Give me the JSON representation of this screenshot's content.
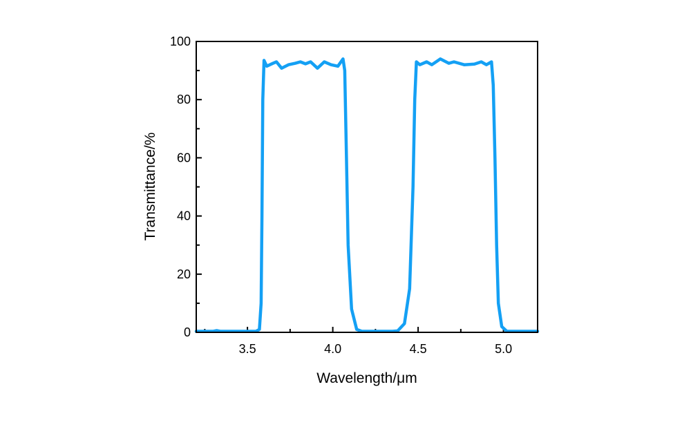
{
  "chart_data": {
    "type": "line",
    "title": "",
    "xlabel": "Wavelength/μm",
    "ylabel": "Transmittance/%",
    "xlim": [
      3.2,
      5.2
    ],
    "ylim": [
      0,
      100
    ],
    "xticks": [
      3.5,
      4.0,
      4.5,
      5.0
    ],
    "xtick_labels": [
      "3.5",
      "4.0",
      "4.5",
      "5.0"
    ],
    "xminor_step": 0.25,
    "yticks": [
      0,
      20,
      40,
      60,
      80,
      100
    ],
    "ytick_labels": [
      "0",
      "20",
      "40",
      "60",
      "80",
      "100"
    ],
    "yminor_step": 10,
    "grid": false,
    "legend": "none",
    "line_color": "#14a0f4",
    "series": [
      {
        "points": [
          [
            3.2,
            0
          ],
          [
            3.3,
            0
          ],
          [
            3.32,
            0.6
          ],
          [
            3.34,
            0
          ],
          [
            3.5,
            0
          ],
          [
            3.55,
            0
          ],
          [
            3.57,
            1
          ],
          [
            3.58,
            10
          ],
          [
            3.585,
            40
          ],
          [
            3.59,
            80
          ],
          [
            3.597,
            93.5
          ],
          [
            3.613,
            91.5
          ],
          [
            3.65,
            92.5
          ],
          [
            3.67,
            93
          ],
          [
            3.7,
            90.8
          ],
          [
            3.74,
            92
          ],
          [
            3.78,
            92.5
          ],
          [
            3.81,
            93
          ],
          [
            3.84,
            92.3
          ],
          [
            3.87,
            93
          ],
          [
            3.91,
            90.8
          ],
          [
            3.95,
            93
          ],
          [
            3.99,
            92
          ],
          [
            4.03,
            91.5
          ],
          [
            4.06,
            94
          ],
          [
            4.07,
            90
          ],
          [
            4.08,
            60
          ],
          [
            4.09,
            30
          ],
          [
            4.11,
            8
          ],
          [
            4.14,
            1
          ],
          [
            4.17,
            0
          ],
          [
            4.35,
            0
          ],
          [
            4.38,
            0.5
          ],
          [
            4.42,
            3
          ],
          [
            4.45,
            15
          ],
          [
            4.47,
            50
          ],
          [
            4.48,
            80
          ],
          [
            4.49,
            93
          ],
          [
            4.51,
            92
          ],
          [
            4.55,
            93
          ],
          [
            4.58,
            92
          ],
          [
            4.63,
            94
          ],
          [
            4.68,
            92.5
          ],
          [
            4.71,
            93
          ],
          [
            4.77,
            92
          ],
          [
            4.83,
            92.2
          ],
          [
            4.87,
            93
          ],
          [
            4.9,
            92
          ],
          [
            4.93,
            93
          ],
          [
            4.94,
            85
          ],
          [
            4.95,
            60
          ],
          [
            4.96,
            30
          ],
          [
            4.97,
            10
          ],
          [
            4.99,
            2
          ],
          [
            5.02,
            0
          ],
          [
            5.2,
            0
          ]
        ]
      }
    ]
  }
}
